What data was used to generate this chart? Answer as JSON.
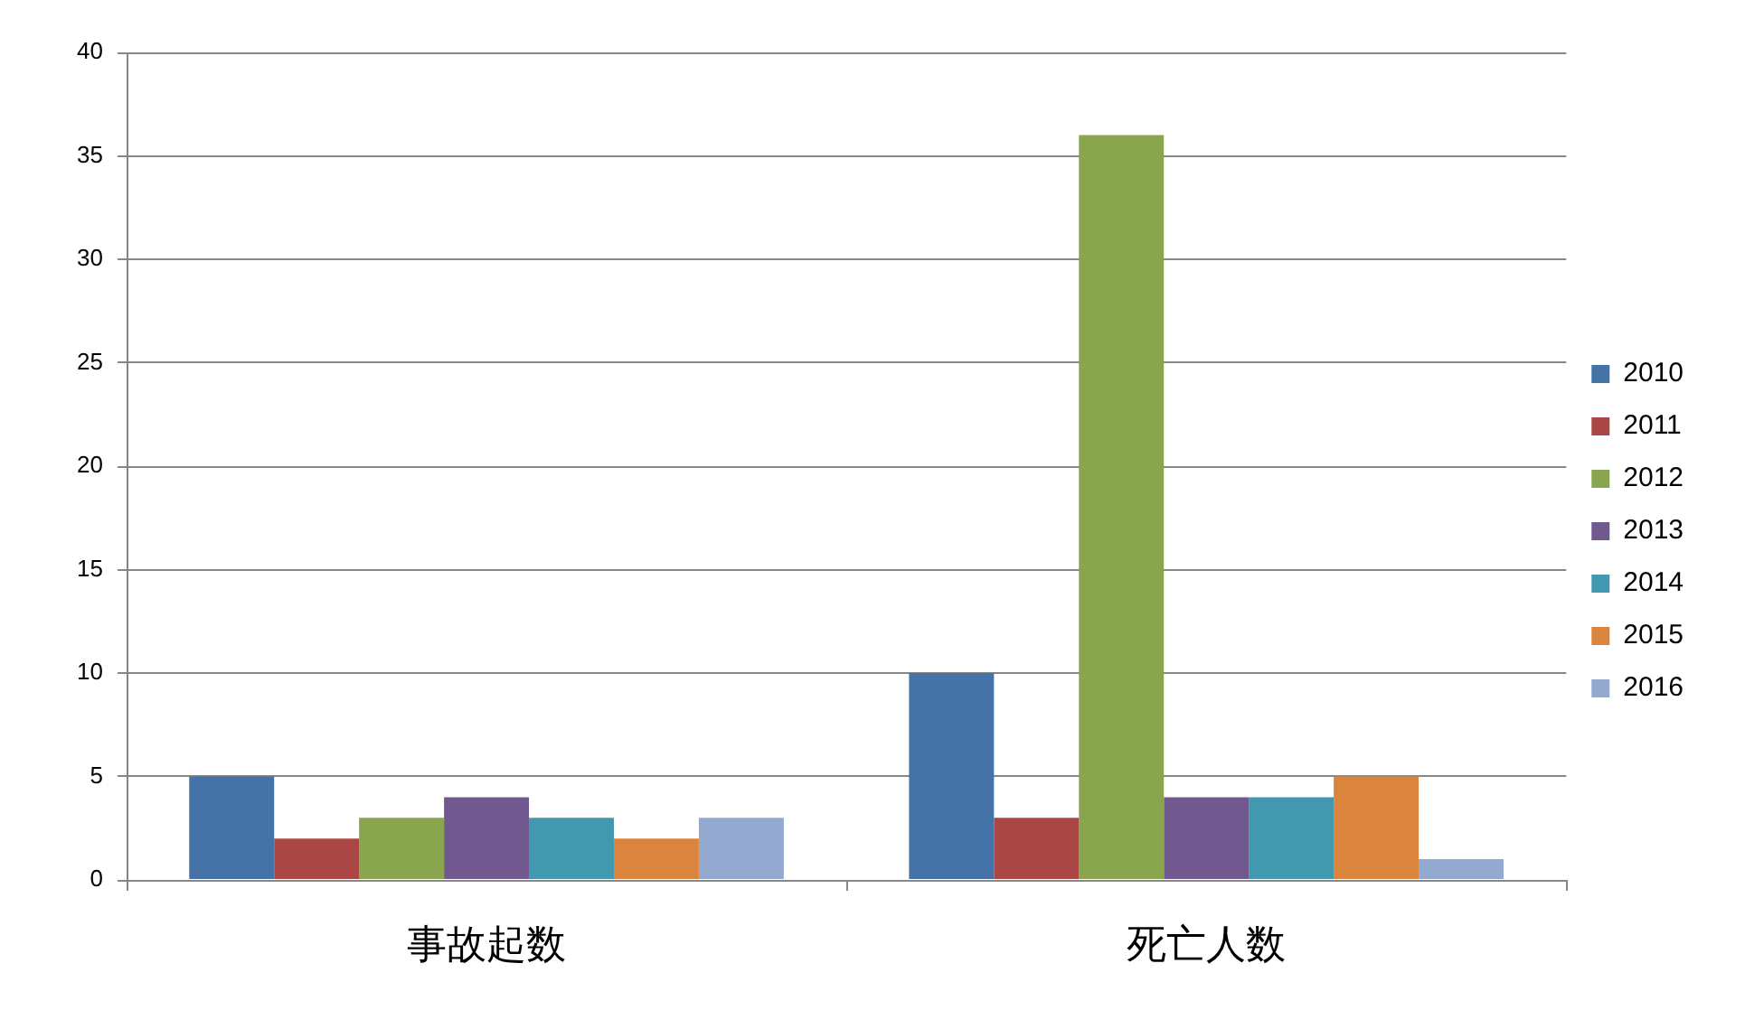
{
  "chart_data": {
    "type": "bar",
    "categories": [
      "事故起数",
      "死亡人数"
    ],
    "series": [
      {
        "name": "2010",
        "color": "#4572a7",
        "values": [
          5,
          10
        ]
      },
      {
        "name": "2011",
        "color": "#aa4643",
        "values": [
          2,
          3
        ]
      },
      {
        "name": "2012",
        "color": "#89a54e",
        "values": [
          3,
          36
        ]
      },
      {
        "name": "2013",
        "color": "#71588f",
        "values": [
          4,
          4
        ]
      },
      {
        "name": "2014",
        "color": "#4198af",
        "values": [
          3,
          4
        ]
      },
      {
        "name": "2015",
        "color": "#db843d",
        "values": [
          2,
          5
        ]
      },
      {
        "name": "2016",
        "color": "#93a9cf",
        "values": [
          3,
          1
        ]
      }
    ],
    "ylim": [
      0,
      40
    ],
    "yticks": [
      0,
      5,
      10,
      15,
      20,
      25,
      30,
      35,
      40
    ],
    "grid": "y",
    "legend": "right"
  }
}
